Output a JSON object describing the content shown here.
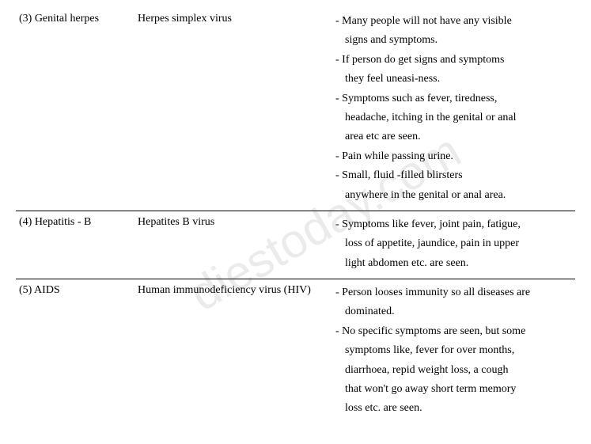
{
  "watermark": "diestoday.com",
  "rows": [
    {
      "disease": "(3) Genital herpes",
      "cause": "Herpes simplex virus",
      "symptoms": [
        {
          "text": "- Many people will not have any visible",
          "indent": false
        },
        {
          "text": "signs and symptoms.",
          "indent": true
        },
        {
          "text": "- If person do get signs and symptoms",
          "indent": false
        },
        {
          "text": "they feel uneasi-ness.",
          "indent": true
        },
        {
          "text": "- Symptoms such as fever, tiredness,",
          "indent": false
        },
        {
          "text": "headache, itching in the genital or anal",
          "indent": true
        },
        {
          "text": "area etc are seen.",
          "indent": true
        },
        {
          "text": "- Pain while passing urine.",
          "indent": false
        },
        {
          "text": "- Small, fluid -filled blirsters",
          "indent": false
        },
        {
          "text": "anywhere in the genital or anal area.",
          "indent": true
        }
      ],
      "border": true
    },
    {
      "disease": "(4) Hepatitis - B",
      "cause": "Hepatites B virus",
      "symptoms": [
        {
          "text": "- Symptoms like fever, joint pain, fatigue,",
          "indent": false
        },
        {
          "text": "loss of appetite, jaundice, pain in upper",
          "indent": true
        },
        {
          "text": "light abdomen etc. are seen.",
          "indent": true
        }
      ],
      "border": true
    },
    {
      "disease": "(5) AIDS",
      "cause": "Human immunodeficiency virus (HIV)",
      "symptoms": [
        {
          "text": "- Person looses immunity so all diseases are",
          "indent": false
        },
        {
          "text": "dominated.",
          "indent": true
        },
        {
          "text": "- No specific symptoms are seen, but some",
          "indent": false
        },
        {
          "text": "symptoms like, fever for over months,",
          "indent": true
        },
        {
          "text": "diarrhoea, repid weight loss, a cough",
          "indent": true
        },
        {
          "text": "that won't go away short term memory",
          "indent": true
        },
        {
          "text": "loss etc. are seen.",
          "indent": true
        }
      ],
      "border": false
    }
  ]
}
